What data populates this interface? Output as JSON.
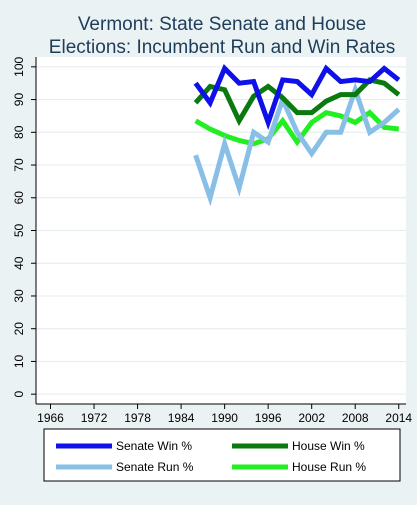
{
  "chart_data": {
    "type": "line",
    "title_line1": "Vermont: State Senate and House",
    "title_line2": "Elections: Incumbent Run and Win Rates",
    "xlabel": "",
    "ylabel": "",
    "xlim": [
      1964,
      2015
    ],
    "ylim": [
      -3,
      103
    ],
    "x_ticks": [
      1966,
      1972,
      1978,
      1984,
      1990,
      1996,
      2002,
      2008,
      2014
    ],
    "y_ticks": [
      0,
      10,
      20,
      30,
      40,
      50,
      60,
      70,
      80,
      90,
      100
    ],
    "grid": true,
    "legend_position": "bottom",
    "x": [
      1986,
      1988,
      1990,
      1992,
      1994,
      1996,
      1998,
      2000,
      2002,
      2004,
      2006,
      2008,
      2010,
      2012,
      2014
    ],
    "series": [
      {
        "name": "Senate Win %",
        "color": "#1010e8",
        "width": 5,
        "values": [
          95,
          89,
          99.5,
          95,
          95.5,
          83,
          96,
          95.5,
          91.5,
          99.5,
          95.5,
          96,
          95.5,
          99.5,
          96
        ]
      },
      {
        "name": "House Win %",
        "color": "#0a7a10",
        "width": 5,
        "values": [
          89,
          94,
          93,
          83.5,
          91,
          94,
          90.5,
          86,
          86,
          89.5,
          91.5,
          91.5,
          96,
          95,
          91.5
        ]
      },
      {
        "name": "Senate Run %",
        "color": "#87bfe6",
        "width": 5,
        "values": [
          73,
          60,
          76.5,
          63,
          80,
          77,
          90,
          80,
          73.5,
          80,
          80,
          93,
          80,
          83,
          87
        ]
      },
      {
        "name": "House Run %",
        "color": "#22ee22",
        "width": 5,
        "values": [
          83.5,
          81,
          79,
          77.5,
          76.5,
          78,
          83.5,
          77,
          83,
          86,
          85,
          83,
          86,
          81.5,
          81
        ]
      }
    ]
  }
}
